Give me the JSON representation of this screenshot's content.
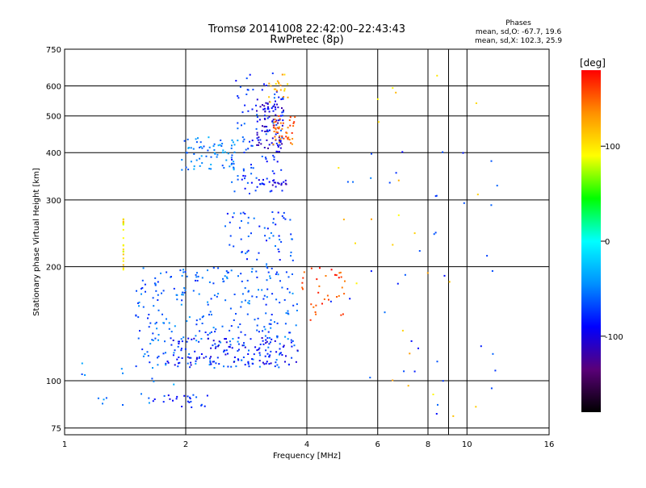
{
  "chart_data": {
    "type": "scatter",
    "title": "Tromsø 20141008 22:42:00–22:43:43",
    "subtitle": "RwPretec (8p)",
    "xlabel": "Frequency [MHz]",
    "ylabel": "Stationary phase Virtual Height [km]",
    "x_scale": "log",
    "y_scale": "log",
    "xlim": [
      1,
      16
    ],
    "ylim": [
      72,
      750
    ],
    "grid": true,
    "x_ticks": [
      {
        "value": 1,
        "label": "1"
      },
      {
        "value": 2,
        "label": "2"
      },
      {
        "value": 4,
        "label": "4"
      },
      {
        "value": 6,
        "label": "6"
      },
      {
        "value": 8,
        "label": "8"
      },
      {
        "value": 10,
        "label": "10"
      },
      {
        "value": 16,
        "label": "16"
      }
    ],
    "x_extra_gridlines": [
      9
    ],
    "y_ticks": [
      {
        "value": 75,
        "label": "75"
      },
      {
        "value": 100,
        "label": "100"
      },
      {
        "value": 200,
        "label": "200"
      },
      {
        "value": 300,
        "label": "300"
      },
      {
        "value": 400,
        "label": "400"
      },
      {
        "value": 500,
        "label": "500"
      },
      {
        "value": 600,
        "label": "600"
      },
      {
        "value": 750,
        "label": "750"
      }
    ],
    "stats_heading": "Phases",
    "stats_lines": [
      "mean, sd,O: -67.7, 19.6",
      "mean, sd,X: 102.3, 25.9"
    ],
    "colorbar": {
      "label": "[deg]",
      "range": [
        -180,
        180
      ],
      "ticks": [
        {
          "value": 100,
          "label": "100"
        },
        {
          "value": 0,
          "label": "0"
        },
        {
          "value": -100,
          "label": "-100"
        }
      ],
      "stops": [
        "#000000",
        "#5a0078",
        "#0000ff",
        "#0090ff",
        "#00ffff",
        "#00ff00",
        "#ffff00",
        "#ff9000",
        "#ff0000"
      ]
    },
    "clusters": [
      {
        "phase": -75,
        "n": 120,
        "x": [
          2.6,
          3.5
        ],
        "y": [
          310,
          650
        ]
      },
      {
        "phase": -105,
        "n": 70,
        "x": [
          3.0,
          3.5
        ],
        "y": [
          400,
          560
        ]
      },
      {
        "phase": -50,
        "n": 70,
        "x": [
          1.95,
          2.7
        ],
        "y": [
          360,
          440
        ]
      },
      {
        "phase": 150,
        "n": 45,
        "x": [
          3.3,
          3.75
        ],
        "y": [
          420,
          500
        ]
      },
      {
        "phase": 120,
        "n": 20,
        "x": [
          3.2,
          3.6
        ],
        "y": [
          540,
          650
        ]
      },
      {
        "phase": -100,
        "n": 20,
        "x": [
          3.0,
          3.6
        ],
        "y": [
          325,
          340
        ]
      },
      {
        "phase": -60,
        "n": 300,
        "x": [
          1.5,
          3.8
        ],
        "y": [
          108,
          200
        ]
      },
      {
        "phase": -90,
        "n": 120,
        "x": [
          1.8,
          3.8
        ],
        "y": [
          110,
          130
        ]
      },
      {
        "phase": -70,
        "n": 60,
        "x": [
          2.5,
          3.7
        ],
        "y": [
          200,
          280
        ]
      },
      {
        "phase": 160,
        "n": 35,
        "x": [
          3.8,
          5.0
        ],
        "y": [
          140,
          200
        ]
      },
      {
        "phase": -80,
        "n": 25,
        "x": [
          1.6,
          2.3
        ],
        "y": [
          85,
          92
        ]
      },
      {
        "phase": 100,
        "n": 20,
        "x": [
          1.4,
          1.4
        ],
        "y": [
          195,
          270
        ]
      },
      {
        "phase": -70,
        "n": 40,
        "x": [
          4.5,
          12.0
        ],
        "y": [
          80,
          420
        ]
      },
      {
        "phase": 110,
        "n": 25,
        "x": [
          4.5,
          12.0
        ],
        "y": [
          80,
          650
        ]
      },
      {
        "phase": -50,
        "n": 15,
        "x": [
          1.0,
          1.9
        ],
        "y": [
          85,
          115
        ]
      }
    ]
  }
}
